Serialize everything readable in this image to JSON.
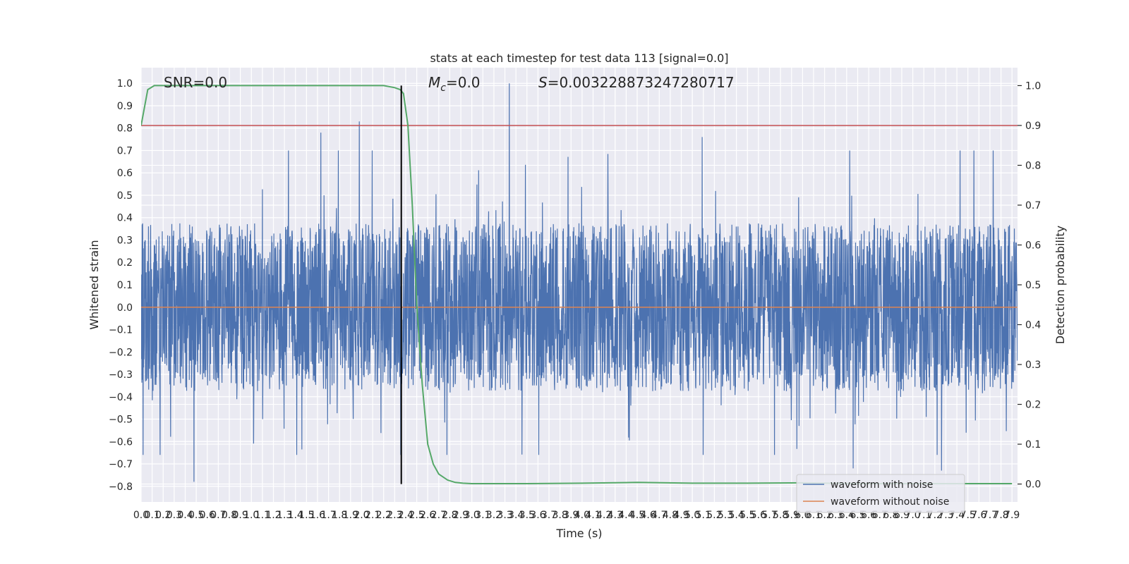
{
  "chart_data": {
    "type": "line",
    "title": "stats at each timestep for test data 113 [signal=0.0]",
    "xlabel": "Time (s)",
    "ylabel_left": "Whitened strain",
    "ylabel_right": "Detection probability",
    "xlim": [
      0.0,
      7.95
    ],
    "ylim_left": [
      -0.87,
      1.07
    ],
    "ylim_right": [
      -0.045,
      1.045
    ],
    "x_ticks": [
      0.0,
      0.1,
      0.2,
      0.3,
      0.4,
      0.5,
      0.6,
      0.7,
      0.8,
      0.9,
      1.0,
      1.1,
      1.2,
      1.3,
      1.4,
      1.5,
      1.6,
      1.7,
      1.8,
      1.9,
      2.0,
      2.1,
      2.2,
      2.3,
      2.4,
      2.5,
      2.6,
      2.7,
      2.8,
      2.9,
      3.0,
      3.1,
      3.2,
      3.3,
      3.4,
      3.5,
      3.6,
      3.7,
      3.8,
      3.9,
      4.0,
      4.1,
      4.2,
      4.3,
      4.4,
      4.5,
      4.6,
      4.7,
      4.8,
      4.9,
      5.0,
      5.1,
      5.2,
      5.3,
      5.4,
      5.5,
      5.6,
      5.7,
      5.8,
      5.9,
      6.0,
      6.1,
      6.2,
      6.3,
      6.4,
      6.5,
      6.6,
      6.7,
      6.8,
      6.9,
      7.0,
      7.1,
      7.2,
      7.3,
      7.4,
      7.5,
      7.6,
      7.7,
      7.8,
      7.9
    ],
    "y_ticks_left": [
      -0.8,
      -0.7,
      -0.6,
      -0.5,
      -0.4,
      -0.3,
      -0.2,
      -0.1,
      0.0,
      0.1,
      0.2,
      0.3,
      0.4,
      0.5,
      0.6,
      0.7,
      0.8,
      0.9,
      1.0
    ],
    "y_ticks_right": [
      0.0,
      0.1,
      0.2,
      0.3,
      0.4,
      0.5,
      0.6,
      0.7,
      0.8,
      0.9,
      1.0
    ],
    "annotations": {
      "snr": "SNR=0.0",
      "mc_symbol": "M",
      "mc_sub": "c",
      "mc_value": "=0.0",
      "s_symbol": "S",
      "s_value": "=0.003228873247280717"
    },
    "grid": true,
    "legend": {
      "position": "lower-right"
    },
    "series": [
      {
        "name": "waveform with noise",
        "axis": "left",
        "color": "#4c72b0",
        "style": "dense noise, envelope approx -0.45 to 0.45, spikes to ~0.83 and 1.0",
        "peaks": [
          {
            "x": 3.34,
            "y": 1.0
          },
          {
            "x": 1.98,
            "y": 0.83
          },
          {
            "x": 1.63,
            "y": 0.78
          },
          {
            "x": 5.09,
            "y": 0.76
          },
          {
            "x": 0.48,
            "y": -0.78
          },
          {
            "x": 6.46,
            "y": -0.72
          },
          {
            "x": 7.26,
            "y": -0.73
          }
        ]
      },
      {
        "name": "waveform without noise",
        "axis": "left",
        "color": "#dd8452",
        "x": [
          0.0,
          7.95
        ],
        "y": [
          0.0,
          0.0
        ]
      },
      {
        "axis": "right",
        "color": "#55a868",
        "x": [
          0.0,
          0.06,
          0.12,
          0.2,
          0.4,
          0.8,
          1.2,
          1.6,
          2.0,
          2.2,
          2.3,
          2.35,
          2.38,
          2.42,
          2.46,
          2.5,
          2.55,
          2.6,
          2.65,
          2.7,
          2.78,
          2.85,
          2.92,
          3.0,
          3.1,
          3.5,
          4.0,
          4.5,
          5.0,
          5.5,
          6.0,
          6.5,
          7.0,
          7.5,
          7.9
        ],
        "y": [
          0.9,
          0.99,
          1.0,
          1.0,
          1.0,
          1.0,
          1.0,
          1.0,
          1.0,
          1.0,
          0.995,
          0.99,
          0.98,
          0.9,
          0.7,
          0.45,
          0.25,
          0.1,
          0.05,
          0.025,
          0.01,
          0.004,
          0.002,
          0.001,
          0.001,
          0.001,
          0.002,
          0.004,
          0.002,
          0.002,
          0.003,
          0.001,
          0.001,
          0.001,
          0.001
        ]
      }
    ],
    "threshold": {
      "axis": "right",
      "value": 0.9,
      "color": "#c44e52"
    },
    "vline": {
      "x": 2.36,
      "y_range": [
        0.0,
        1.0
      ],
      "axis": "right",
      "color": "#000000"
    }
  }
}
